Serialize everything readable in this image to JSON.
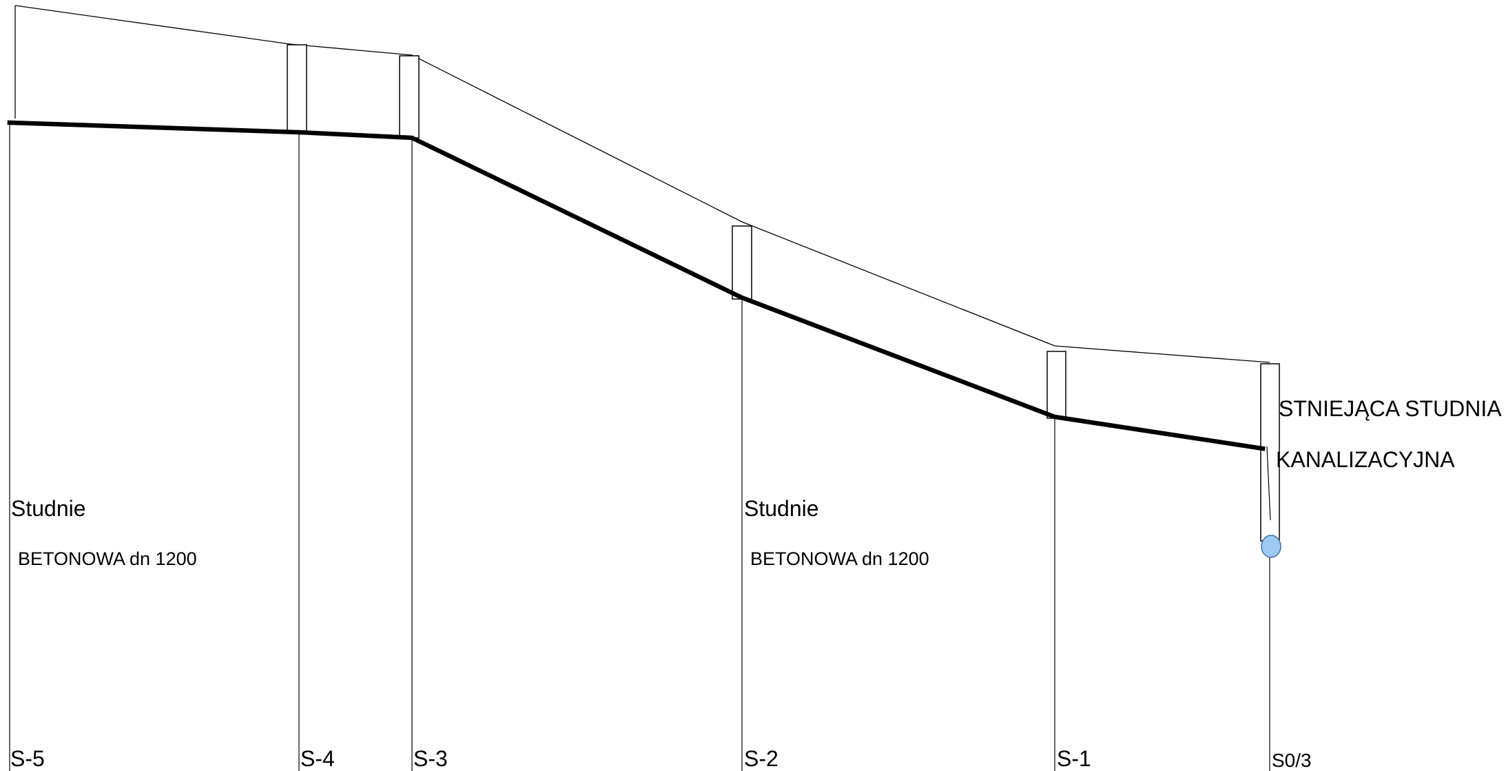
{
  "diagram": {
    "colors": {
      "line": "#000000",
      "sewer": "#000000",
      "well_fill": "#ffffff",
      "existing_well_marker": "#9ec9f5",
      "existing_well_marker_stroke": "#3a6ea5"
    },
    "labels": {
      "note_1_title": "Studnie",
      "note_1_detail": "BETONOWA  dn 1200",
      "note_2_title": "Studnie",
      "note_2_detail": "BETONOWA  dn 1200",
      "existing_well_line1": "STNIEJĄCA STUDNIA",
      "existing_well_line2": "KANALIZACYJNA"
    },
    "stations": [
      {
        "label": "S-5"
      },
      {
        "label": "S-4"
      },
      {
        "label": "S-3"
      },
      {
        "label": "S-2"
      },
      {
        "label": "S-1"
      },
      {
        "label": "S0/3"
      }
    ]
  }
}
